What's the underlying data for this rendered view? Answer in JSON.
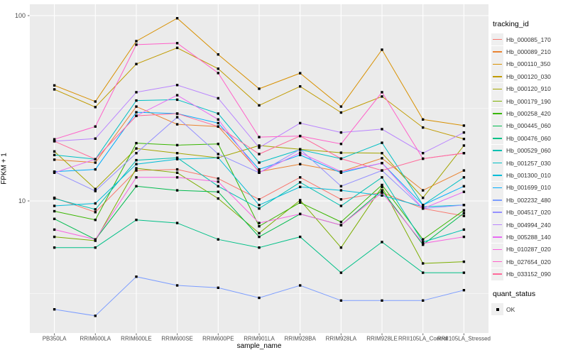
{
  "figure": {
    "xlabel": "sample_name",
    "ylabel": "FPKM + 1",
    "tracking_legend_title": "tracking_id",
    "quant_legend_title": "quant_status",
    "quant_ok_label": "OK"
  },
  "colors": {
    "panel_bg": "#EBEBEB",
    "grid": "#FFFFFF",
    "tick_text": "#4D4D4D",
    "tick_mark": "#666666",
    "point": "#000000",
    "legend_key_bg": "#EFEFEF"
  },
  "chart_data": {
    "type": "line",
    "x_type": "categorical",
    "y_scale": "log10",
    "xlabel": "sample_name",
    "ylabel": "FPKM + 1",
    "y_ticks": [
      10,
      100
    ],
    "y_minor_gridlines": [
      3.162,
      31.623
    ],
    "ylim_approx": [
      2.0,
      115
    ],
    "grid": true,
    "legend_title": "tracking_id",
    "legend_position": "right",
    "point_marker": "black-filled-square",
    "quant_status": {
      "title": "quant_status",
      "items": [
        {
          "label": "OK",
          "marker": "black-filled-square"
        }
      ]
    },
    "categories": [
      "PB350LA",
      "RRIM600LA",
      "RRIM600LE",
      "RRIM600SE",
      "RRIM600PE",
      "RRIM901LA",
      "RRIM928BA",
      "RRIM928LA",
      "RRIM928LE",
      "RRII105LA_Control",
      "RRII105LA_Stressed"
    ],
    "series": [
      {
        "name": "Hb_000085_170",
        "color": "#F8766D",
        "values": [
          10.4,
          8.7,
          14.6,
          14.8,
          13.2,
          10.2,
          13.4,
          10.2,
          11.1,
          9.1,
          8.3
        ]
      },
      {
        "name": "Hb_000089_210",
        "color": "#EA8331",
        "values": [
          16.7,
          16.1,
          32.3,
          25.9,
          25.2,
          14.4,
          15.8,
          14.4,
          17.0,
          11.4,
          14.6
        ]
      },
      {
        "name": "Hb_000110_350",
        "color": "#D89000",
        "values": [
          42.0,
          34.4,
          72.8,
          96.8,
          61.7,
          40.3,
          48.9,
          32.3,
          65.5,
          27.5,
          25.5
        ]
      },
      {
        "name": "Hb_000120_030",
        "color": "#C09B00",
        "values": [
          40.0,
          32.1,
          54.8,
          67.0,
          51.7,
          32.8,
          41.5,
          30.0,
          36.6,
          24.9,
          21.6
        ]
      },
      {
        "name": "Hb_000120_910",
        "color": "#A3A500",
        "values": [
          18.5,
          11.6,
          19.2,
          18.1,
          17.1,
          19.9,
          19.0,
          18.2,
          18.1,
          10.4,
          19.9
        ]
      },
      {
        "name": "Hb_000179_190",
        "color": "#7CAE00",
        "values": [
          6.4,
          6.1,
          15.0,
          14.2,
          10.3,
          6.7,
          10.1,
          5.6,
          11.9,
          4.6,
          4.7
        ]
      },
      {
        "name": "Hb_000258_420",
        "color": "#39B600",
        "values": [
          8.8,
          7.9,
          20.5,
          20.0,
          20.3,
          7.3,
          9.8,
          7.7,
          12.2,
          6.2,
          8.9
        ]
      },
      {
        "name": "Hb_000445_060",
        "color": "#00BB4E",
        "values": [
          8.0,
          6.2,
          12.0,
          11.4,
          11.2,
          6.4,
          8.5,
          7.4,
          11.4,
          5.8,
          8.6
        ]
      },
      {
        "name": "Hb_000476_060",
        "color": "#00C087",
        "values": [
          5.6,
          5.6,
          7.9,
          7.6,
          6.2,
          5.6,
          6.4,
          4.1,
          6.0,
          4.1,
          4.1
        ]
      },
      {
        "name": "Hb_000529_060",
        "color": "#00C0B2",
        "values": [
          10.3,
          9.0,
          16.6,
          17.1,
          12.0,
          9.1,
          12.6,
          9.4,
          13.4,
          6.0,
          7.0
        ]
      },
      {
        "name": "Hb_001257_030",
        "color": "#00BFC4",
        "values": [
          17.7,
          16.8,
          34.8,
          35.2,
          29.6,
          16.1,
          18.9,
          16.9,
          20.6,
          9.5,
          13.4
        ]
      },
      {
        "name": "Hb_001300_010",
        "color": "#00BCD8",
        "values": [
          9.4,
          9.7,
          15.8,
          16.8,
          17.1,
          9.5,
          11.9,
          11.4,
          10.7,
          9.3,
          9.5
        ]
      },
      {
        "name": "Hb_001699_010",
        "color": "#00ACFC",
        "values": [
          14.4,
          14.8,
          30.1,
          29.6,
          26.3,
          14.8,
          17.7,
          14.2,
          16.0,
          9.5,
          12.0
        ]
      },
      {
        "name": "Hb_002232_480",
        "color": "#7C9DFF",
        "values": [
          2.6,
          2.4,
          3.9,
          3.5,
          3.4,
          3.0,
          3.5,
          2.9,
          2.9,
          2.9,
          3.3
        ]
      },
      {
        "name": "Hb_004517_020",
        "color": "#9590FF",
        "values": [
          14.4,
          11.3,
          18.1,
          28.3,
          17.9,
          14.2,
          19.0,
          12.0,
          14.6,
          9.1,
          9.5
        ]
      },
      {
        "name": "Hb_004994_240",
        "color": "#B983FF",
        "values": [
          21.0,
          21.7,
          38.6,
          42.2,
          35.8,
          19.4,
          26.3,
          23.4,
          24.4,
          18.1,
          23.4
        ]
      },
      {
        "name": "Hb_005288_140",
        "color": "#E76BF3",
        "values": [
          14.2,
          16.8,
          28.8,
          37.2,
          27.5,
          14.2,
          18.2,
          14.4,
          16.0,
          9.1,
          11.2
        ]
      },
      {
        "name": "Hb_010287_020",
        "color": "#F763E0",
        "values": [
          7.0,
          6.2,
          13.4,
          13.4,
          12.7,
          7.6,
          8.5,
          7.4,
          11.1,
          5.9,
          6.4
        ]
      },
      {
        "name": "Hb_027654_020",
        "color": "#FF61C9",
        "values": [
          21.5,
          25.2,
          69.7,
          71.0,
          49.0,
          22.1,
          22.4,
          20.3,
          38.6,
          16.9,
          18.1
        ]
      },
      {
        "name": "Hb_033152_090",
        "color": "#FF6A9A",
        "values": [
          21.0,
          16.8,
          28.8,
          29.6,
          25.2,
          17.9,
          22.4,
          16.9,
          14.6,
          16.9,
          18.1
        ]
      }
    ]
  }
}
